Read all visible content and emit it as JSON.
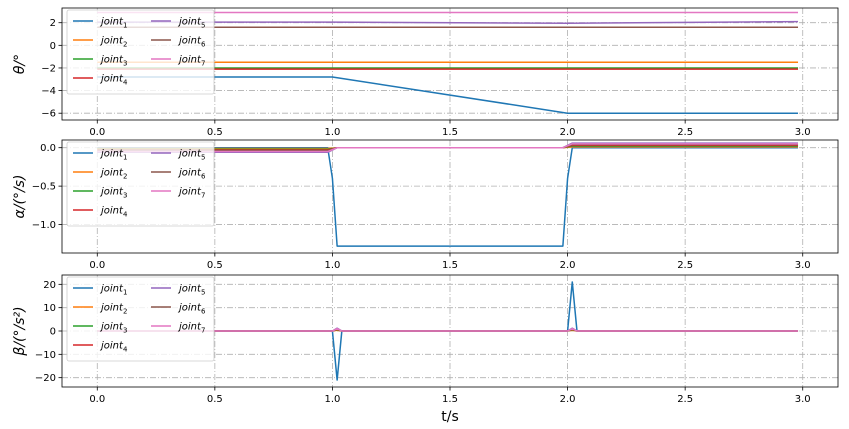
{
  "chart_data": [
    {
      "type": "line",
      "ylabel": "θ/°",
      "xlabel": "",
      "xlim": [
        -0.15,
        3.15
      ],
      "ylim": [
        -6.6,
        3.3
      ],
      "xticks": [
        0.0,
        0.5,
        1.0,
        1.5,
        2.0,
        2.5,
        3.0
      ],
      "xticklabels": [
        "0.0",
        "0.5",
        "1.0",
        "1.5",
        "2.0",
        "2.5",
        "3.0"
      ],
      "yticks": [
        2,
        0,
        -2,
        -4,
        -6
      ],
      "yticklabels": [
        "2",
        "0",
        "−2",
        "−4",
        "−6"
      ],
      "grid": true,
      "legend_position": "top-left",
      "series": [
        {
          "name": "joint",
          "sub": "1",
          "color": "#1f77b4",
          "x": [
            0.0,
            1.0,
            2.0,
            2.98
          ],
          "y": [
            -2.8,
            -2.8,
            -6.0,
            -6.0
          ]
        },
        {
          "name": "joint",
          "sub": "2",
          "color": "#ff7f0e",
          "x": [
            0.0,
            2.98
          ],
          "y": [
            -1.5,
            -1.5
          ]
        },
        {
          "name": "joint",
          "sub": "3",
          "color": "#2ca02c",
          "x": [
            0.0,
            2.98
          ],
          "y": [
            -2.0,
            -2.0
          ]
        },
        {
          "name": "joint",
          "sub": "4",
          "color": "#d62728",
          "x": [
            0.0,
            2.98
          ],
          "y": [
            -2.1,
            -2.1
          ]
        },
        {
          "name": "joint",
          "sub": "5",
          "color": "#9467bd",
          "x": [
            0.0,
            1.0,
            2.0,
            2.98
          ],
          "y": [
            2.05,
            2.05,
            1.95,
            2.1
          ]
        },
        {
          "name": "joint",
          "sub": "6",
          "color": "#8c564b",
          "x": [
            0.0,
            2.98
          ],
          "y": [
            1.6,
            1.6
          ]
        },
        {
          "name": "joint",
          "sub": "7",
          "color": "#e377c2",
          "x": [
            0.0,
            2.98
          ],
          "y": [
            2.9,
            2.9
          ]
        }
      ]
    },
    {
      "type": "line",
      "ylabel": "α/(°/s)",
      "xlabel": "",
      "xlim": [
        -0.15,
        3.15
      ],
      "ylim": [
        -1.37,
        0.1
      ],
      "xticks": [
        0.0,
        0.5,
        1.0,
        1.5,
        2.0,
        2.5,
        3.0
      ],
      "xticklabels": [
        "0.0",
        "0.5",
        "1.0",
        "1.5",
        "2.0",
        "2.5",
        "3.0"
      ],
      "yticks": [
        0.0,
        -0.5,
        -1.0
      ],
      "yticklabels": [
        "0.0",
        "−0.5",
        "−1.0"
      ],
      "grid": true,
      "legend_position": "top-left",
      "series": [
        {
          "name": "joint",
          "sub": "1",
          "color": "#1f77b4",
          "x": [
            0.0,
            0.98,
            1.0,
            1.02,
            1.98,
            2.0,
            2.02,
            2.98
          ],
          "y": [
            0.0,
            0.0,
            -0.4,
            -1.28,
            -1.28,
            -0.4,
            0.0,
            0.0
          ]
        },
        {
          "name": "joint",
          "sub": "2",
          "color": "#ff7f0e",
          "x": [
            0.0,
            0.98,
            1.02,
            1.98,
            2.02,
            2.98
          ],
          "y": [
            -0.01,
            -0.01,
            0.0,
            0.0,
            0.01,
            0.01
          ]
        },
        {
          "name": "joint",
          "sub": "3",
          "color": "#2ca02c",
          "x": [
            0.0,
            0.98,
            1.02,
            1.98,
            2.02,
            2.98
          ],
          "y": [
            -0.02,
            -0.02,
            0.0,
            0.0,
            0.02,
            0.02
          ]
        },
        {
          "name": "joint",
          "sub": "4",
          "color": "#d62728",
          "x": [
            0.0,
            0.98,
            1.02,
            1.98,
            2.02,
            2.98
          ],
          "y": [
            -0.03,
            -0.03,
            0.0,
            0.0,
            0.03,
            0.03
          ]
        },
        {
          "name": "joint",
          "sub": "5",
          "color": "#9467bd",
          "x": [
            0.0,
            0.98,
            1.02,
            1.98,
            2.02,
            2.98
          ],
          "y": [
            -0.06,
            -0.06,
            0.0,
            0.0,
            0.06,
            0.06
          ]
        },
        {
          "name": "joint",
          "sub": "6",
          "color": "#8c564b",
          "x": [
            0.0,
            0.98,
            1.02,
            1.98,
            2.02,
            2.98
          ],
          "y": [
            -0.04,
            -0.04,
            0.0,
            0.0,
            0.04,
            0.04
          ]
        },
        {
          "name": "joint",
          "sub": "7",
          "color": "#e377c2",
          "x": [
            0.0,
            0.98,
            1.02,
            1.98,
            2.02,
            2.98
          ],
          "y": [
            -0.05,
            -0.05,
            0.0,
            0.0,
            0.05,
            0.05
          ]
        }
      ]
    },
    {
      "type": "line",
      "ylabel": "β/(°/s²)",
      "xlabel": "t/s",
      "xlim": [
        -0.15,
        3.15
      ],
      "ylim": [
        -24,
        24
      ],
      "xticks": [
        0.0,
        0.5,
        1.0,
        1.5,
        2.0,
        2.5,
        3.0
      ],
      "xticklabels": [
        "0.0",
        "0.5",
        "1.0",
        "1.5",
        "2.0",
        "2.5",
        "3.0"
      ],
      "yticks": [
        20,
        10,
        0,
        -10,
        -20
      ],
      "yticklabels": [
        "20",
        "10",
        "0",
        "−10",
        "−20"
      ],
      "grid": true,
      "legend_position": "top-left",
      "series": [
        {
          "name": "joint",
          "sub": "1",
          "color": "#1f77b4",
          "x": [
            0.0,
            1.0,
            1.02,
            1.04,
            2.0,
            2.02,
            2.04,
            2.98
          ],
          "y": [
            0,
            0,
            -21,
            0,
            0,
            21,
            0,
            0
          ]
        },
        {
          "name": "joint",
          "sub": "2",
          "color": "#ff7f0e",
          "x": [
            0.0,
            1.0,
            1.02,
            1.04,
            2.0,
            2.02,
            2.04,
            2.98
          ],
          "y": [
            0,
            0,
            0.3,
            0,
            0,
            0.3,
            0,
            0
          ]
        },
        {
          "name": "joint",
          "sub": "3",
          "color": "#2ca02c",
          "x": [
            0.0,
            1.0,
            1.02,
            1.04,
            2.0,
            2.02,
            2.04,
            2.98
          ],
          "y": [
            0,
            0,
            0.5,
            0,
            0,
            0.5,
            0,
            0
          ]
        },
        {
          "name": "joint",
          "sub": "4",
          "color": "#d62728",
          "x": [
            0.0,
            1.0,
            1.02,
            1.04,
            2.0,
            2.02,
            2.04,
            2.98
          ],
          "y": [
            0,
            0,
            0.7,
            0,
            0,
            0.7,
            0,
            0
          ]
        },
        {
          "name": "joint",
          "sub": "5",
          "color": "#9467bd",
          "x": [
            0.0,
            1.0,
            1.02,
            1.04,
            2.0,
            2.02,
            2.04,
            2.98
          ],
          "y": [
            0,
            0,
            1.2,
            0,
            0,
            1.2,
            0,
            0
          ]
        },
        {
          "name": "joint",
          "sub": "6",
          "color": "#8c564b",
          "x": [
            0.0,
            1.0,
            1.02,
            1.04,
            2.0,
            2.02,
            2.04,
            2.98
          ],
          "y": [
            0,
            0,
            0.9,
            0,
            0,
            0.9,
            0,
            0
          ]
        },
        {
          "name": "joint",
          "sub": "7",
          "color": "#e377c2",
          "x": [
            0.0,
            1.0,
            1.02,
            1.04,
            2.0,
            2.02,
            2.04,
            2.98
          ],
          "y": [
            0,
            0,
            1.0,
            0,
            0,
            1.0,
            0,
            0
          ]
        }
      ]
    }
  ]
}
